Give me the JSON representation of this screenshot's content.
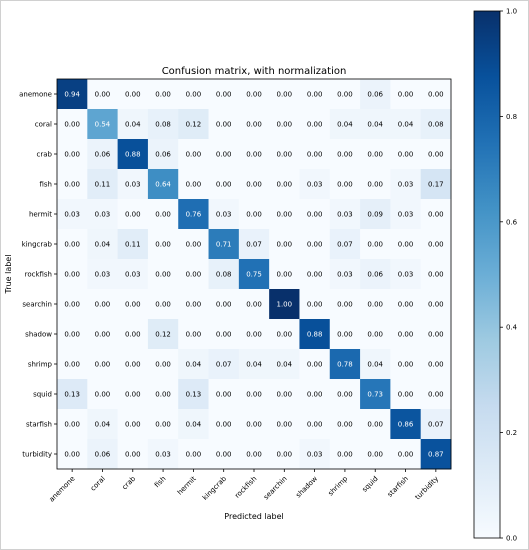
{
  "chart_data": {
    "type": "heatmap",
    "title": "Confusion matrix, with normalization",
    "xlabel": "Predicted label",
    "ylabel": "True label",
    "x_categories": [
      "anemone",
      "coral",
      "crab",
      "fish",
      "hermit",
      "kingcrab",
      "rockfish",
      "searchin",
      "shadow",
      "shrimp",
      "squid",
      "starfish",
      "turbidity"
    ],
    "y_categories": [
      "anemone",
      "coral",
      "crab",
      "fish",
      "hermit",
      "kingcrab",
      "rockfish",
      "searchin",
      "shadow",
      "shrimp",
      "squid",
      "starfish",
      "turbidity"
    ],
    "values": [
      [
        0.94,
        0.0,
        0.0,
        0.0,
        0.0,
        0.0,
        0.0,
        0.0,
        0.0,
        0.0,
        0.06,
        0.0,
        0.0
      ],
      [
        0.0,
        0.54,
        0.04,
        0.08,
        0.12,
        0.0,
        0.0,
        0.0,
        0.0,
        0.04,
        0.04,
        0.04,
        0.08
      ],
      [
        0.0,
        0.06,
        0.88,
        0.06,
        0.0,
        0.0,
        0.0,
        0.0,
        0.0,
        0.0,
        0.0,
        0.0,
        0.0
      ],
      [
        0.0,
        0.11,
        0.03,
        0.64,
        0.0,
        0.0,
        0.0,
        0.0,
        0.03,
        0.0,
        0.0,
        0.03,
        0.17
      ],
      [
        0.03,
        0.03,
        0.0,
        0.0,
        0.76,
        0.03,
        0.0,
        0.0,
        0.0,
        0.03,
        0.09,
        0.03,
        0.0
      ],
      [
        0.0,
        0.04,
        0.11,
        0.0,
        0.0,
        0.71,
        0.07,
        0.0,
        0.0,
        0.07,
        0.0,
        0.0,
        0.0
      ],
      [
        0.0,
        0.03,
        0.03,
        0.0,
        0.0,
        0.08,
        0.75,
        0.0,
        0.0,
        0.03,
        0.06,
        0.03,
        0.0
      ],
      [
        0.0,
        0.0,
        0.0,
        0.0,
        0.0,
        0.0,
        0.0,
        1.0,
        0.0,
        0.0,
        0.0,
        0.0,
        0.0
      ],
      [
        0.0,
        0.0,
        0.0,
        0.12,
        0.0,
        0.0,
        0.0,
        0.0,
        0.88,
        0.0,
        0.0,
        0.0,
        0.0
      ],
      [
        0.0,
        0.0,
        0.0,
        0.0,
        0.04,
        0.07,
        0.04,
        0.04,
        0.0,
        0.78,
        0.04,
        0.0,
        0.0
      ],
      [
        0.13,
        0.0,
        0.0,
        0.0,
        0.13,
        0.0,
        0.0,
        0.0,
        0.0,
        0.0,
        0.73,
        0.0,
        0.0
      ],
      [
        0.0,
        0.04,
        0.0,
        0.0,
        0.04,
        0.0,
        0.0,
        0.0,
        0.0,
        0.0,
        0.0,
        0.86,
        0.07
      ],
      [
        0.0,
        0.06,
        0.0,
        0.03,
        0.0,
        0.0,
        0.0,
        0.0,
        0.03,
        0.0,
        0.0,
        0.0,
        0.87
      ]
    ],
    "colorbar": {
      "min": 0.0,
      "max": 1.0,
      "ticks": [
        "0.0",
        "0.2",
        "0.4",
        "0.6",
        "0.8",
        "1.0"
      ],
      "colormap": "Blues"
    },
    "grid": false
  }
}
